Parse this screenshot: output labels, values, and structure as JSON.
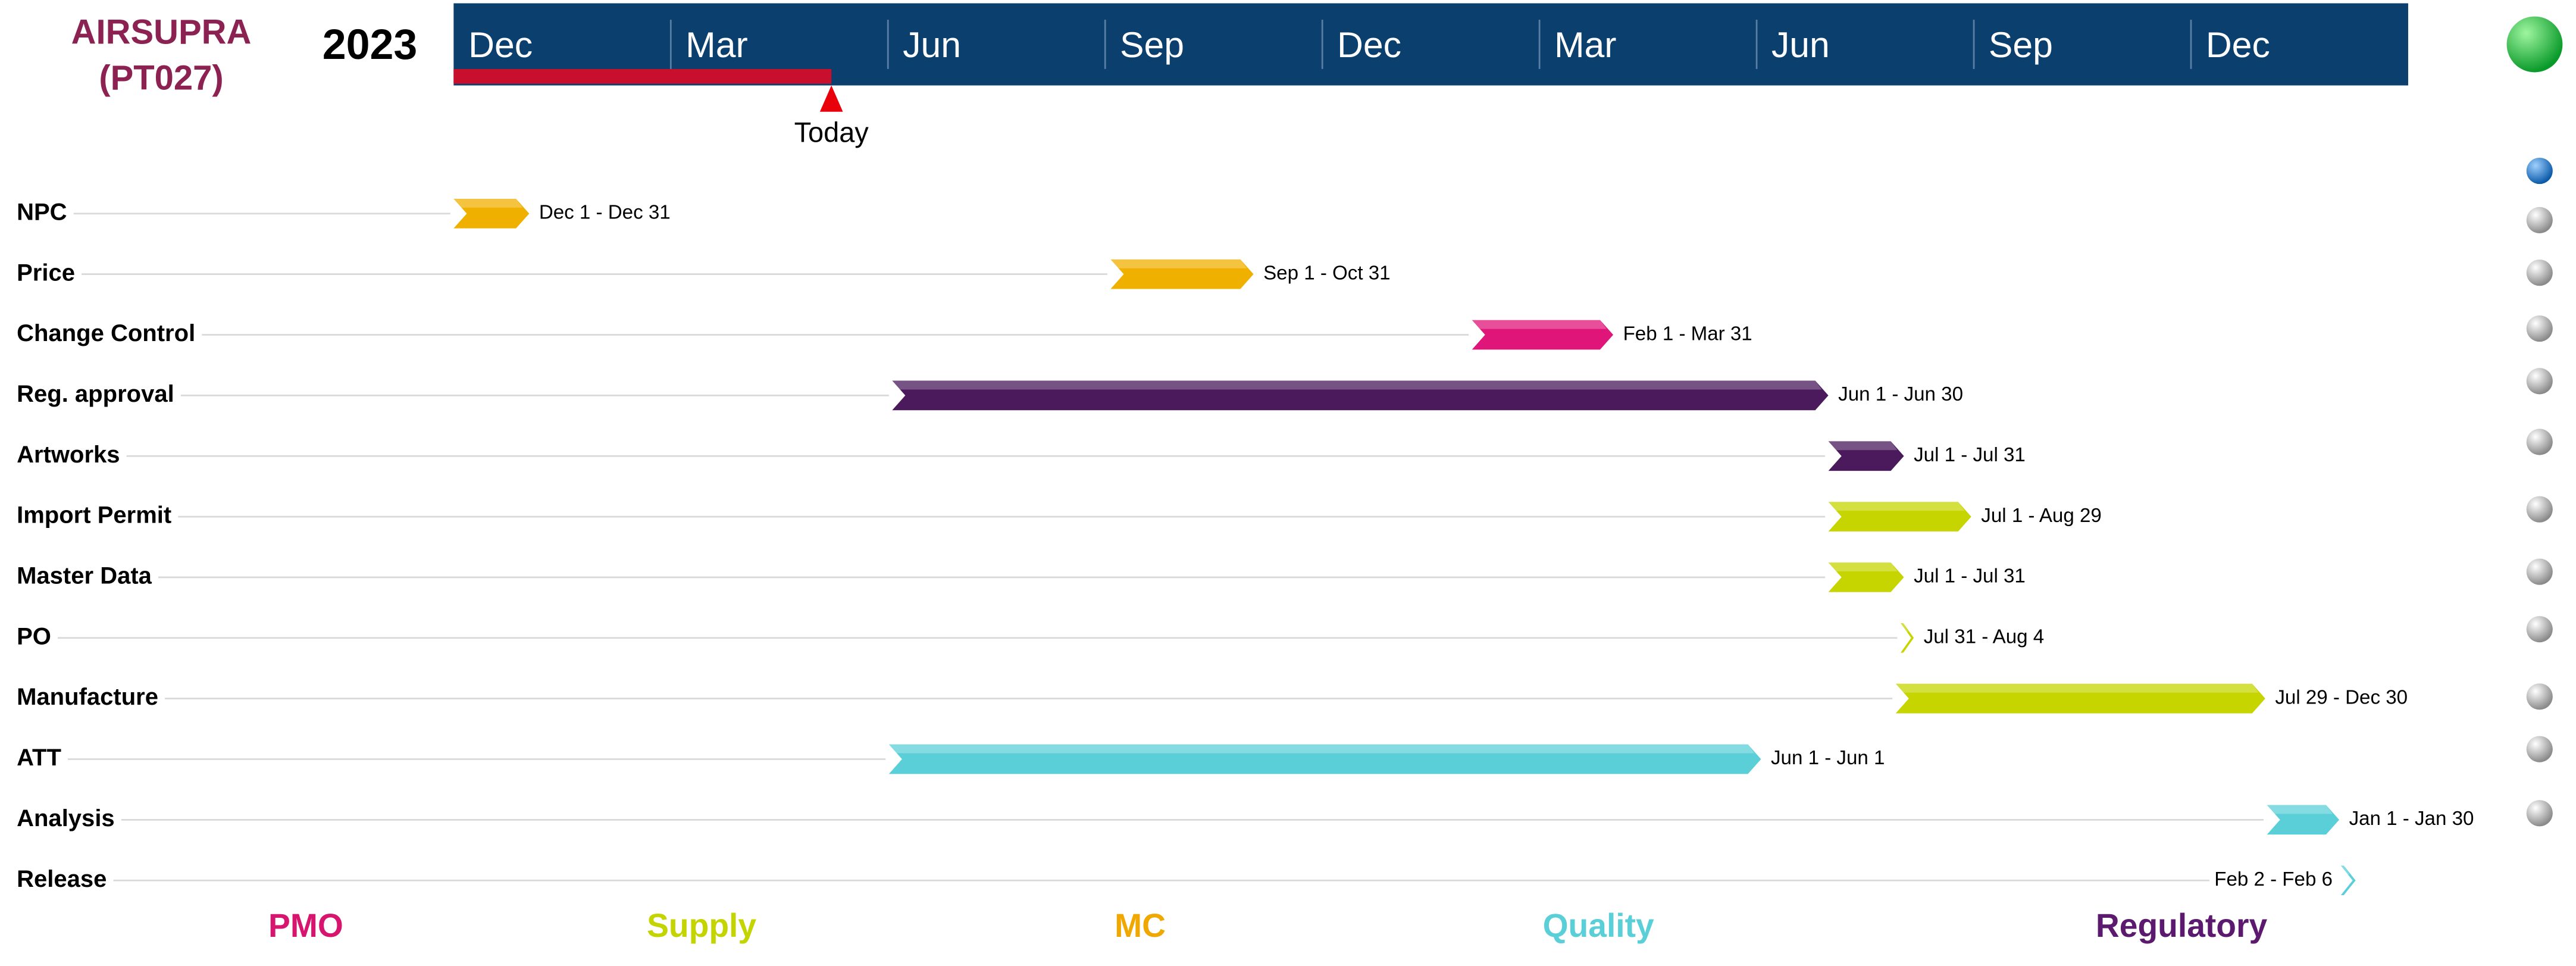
{
  "header": {
    "title_line1": "AIRSUPRA",
    "title_line2": "(PT027)",
    "year": "2023"
  },
  "timeline": {
    "months": [
      "Dec",
      "Mar",
      "Jun",
      "Sep",
      "Dec",
      "Mar",
      "Jun",
      "Sep",
      "Dec"
    ],
    "today_label": "Today"
  },
  "tasks": [
    {
      "label": "NPC",
      "dates": "Dec 1 - Dec 31",
      "color": "#f0b000"
    },
    {
      "label": "Price",
      "dates": "Sep 1 - Oct 31",
      "color": "#f0b000"
    },
    {
      "label": "Change Control",
      "dates": "Feb 1 - Mar 31",
      "color": "#e0157a"
    },
    {
      "label": "Reg. approval",
      "dates": "Jun 1 - Jun 30",
      "color": "#4a1a5c"
    },
    {
      "label": "Artworks",
      "dates": "Jul 1 - Jul 31",
      "color": "#4a1a5c"
    },
    {
      "label": "Import Permit",
      "dates": "Jul 1 - Aug 29",
      "color": "#c6d400"
    },
    {
      "label": "Master Data",
      "dates": "Jul 1 - Jul 31",
      "color": "#c6d400"
    },
    {
      "label": "PO",
      "dates": "Jul 31 - Aug 4",
      "color": "#c6d400"
    },
    {
      "label": "Manufacture",
      "dates": "Jul 29 - Dec 30",
      "color": "#c6d400"
    },
    {
      "label": "ATT",
      "dates": "Jun 1 - Jun 1",
      "color": "#5bcfd8"
    },
    {
      "label": "Analysis",
      "dates": "Jan 1 - Jan 30",
      "color": "#5bcfd8"
    },
    {
      "label": "Release",
      "dates": "Feb 2 - Feb 6",
      "color": "#5bcfd8"
    }
  ],
  "legend": [
    {
      "label": "PMO",
      "color": "#d6156e"
    },
    {
      "label": "Supply",
      "color": "#c4d400"
    },
    {
      "label": "MC",
      "color": "#f0a800"
    },
    {
      "label": "Quality",
      "color": "#5bcfd8"
    },
    {
      "label": "Regulatory",
      "color": "#5c1a6e"
    }
  ]
}
